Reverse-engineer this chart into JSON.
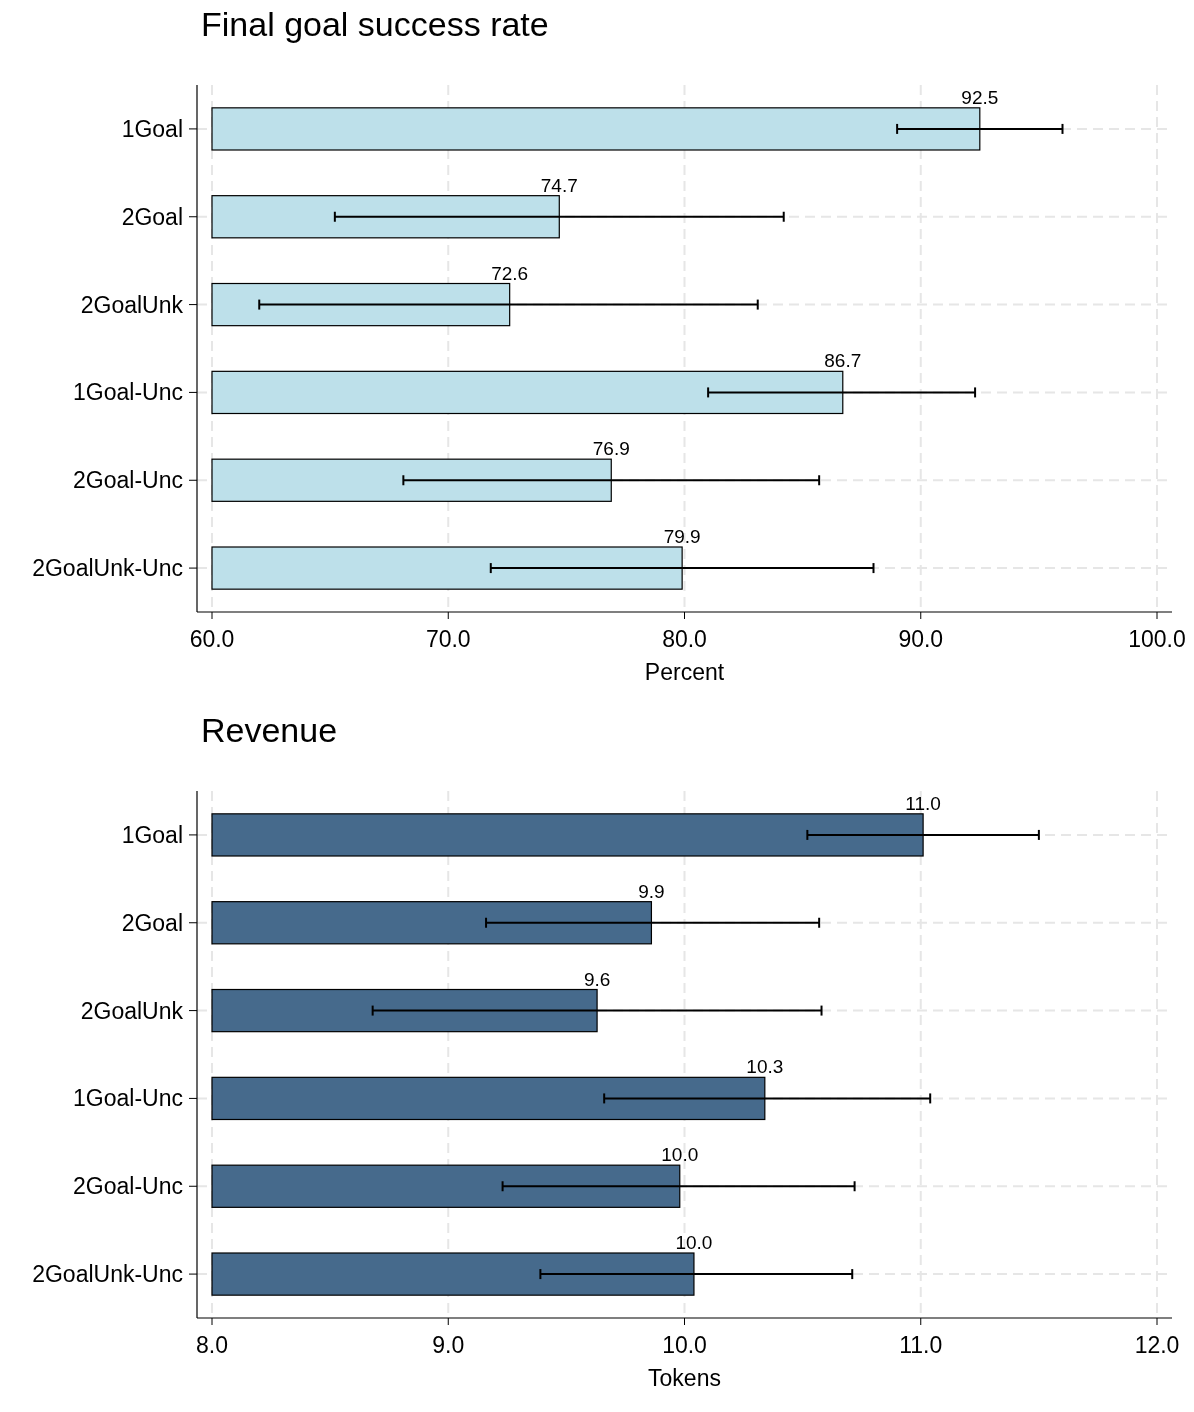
{
  "chart_data": [
    {
      "type": "bar",
      "orientation": "horizontal",
      "title": "Final goal success rate",
      "xlabel": "Percent",
      "categories": [
        "1Goal",
        "2Goal",
        "2GoalUnk",
        "1Goal-Unc",
        "2Goal-Unc",
        "2GoalUnk-Unc"
      ],
      "series": [
        {
          "color": "#bde0ea",
          "values": [
            92.5,
            74.7,
            72.6,
            86.7,
            76.9,
            79.9
          ],
          "errors": [
            [
              89.0,
              96.0
            ],
            [
              65.2,
              84.2
            ],
            [
              62.0,
              83.1
            ],
            [
              81.0,
              92.3
            ],
            [
              68.1,
              85.7
            ],
            [
              71.8,
              88.0
            ]
          ]
        }
      ],
      "data_labels": true,
      "xlim": [
        60,
        100
      ],
      "xticks": [
        {
          "value": 60,
          "label": "60.0"
        },
        {
          "value": 70,
          "label": "70.0"
        },
        {
          "value": 80,
          "label": "80.0"
        },
        {
          "value": 90,
          "label": "90.0"
        },
        {
          "value": 100,
          "label": "100.0"
        }
      ],
      "grid": true
    },
    {
      "type": "bar",
      "orientation": "horizontal",
      "title": "Revenue",
      "xlabel": "Tokens",
      "categories": [
        "1Goal",
        "2Goal",
        "2GoalUnk",
        "1Goal-Unc",
        "2Goal-Unc",
        "2GoalUnk-Unc"
      ],
      "series": [
        {
          "color": "#466a8c",
          "values": [
            11.01,
            9.86,
            9.63,
            10.34,
            9.98,
            10.04
          ],
          "value_labels": [
            "11.0",
            "9.9",
            "9.6",
            "10.3",
            "10.0",
            "10.0"
          ],
          "errors": [
            [
              10.52,
              11.5
            ],
            [
              9.16,
              10.57
            ],
            [
              8.68,
              10.58
            ],
            [
              9.66,
              11.04
            ],
            [
              9.23,
              10.72
            ],
            [
              9.39,
              10.71
            ]
          ]
        }
      ],
      "xlim": [
        8,
        12
      ],
      "xticks": [
        {
          "value": 8,
          "label": "8.0"
        },
        {
          "value": 9,
          "label": "9.0"
        },
        {
          "value": 10,
          "label": "10.0"
        },
        {
          "value": 11,
          "label": "11.0"
        },
        {
          "value": 12,
          "label": "12.0"
        }
      ],
      "grid": true
    }
  ]
}
